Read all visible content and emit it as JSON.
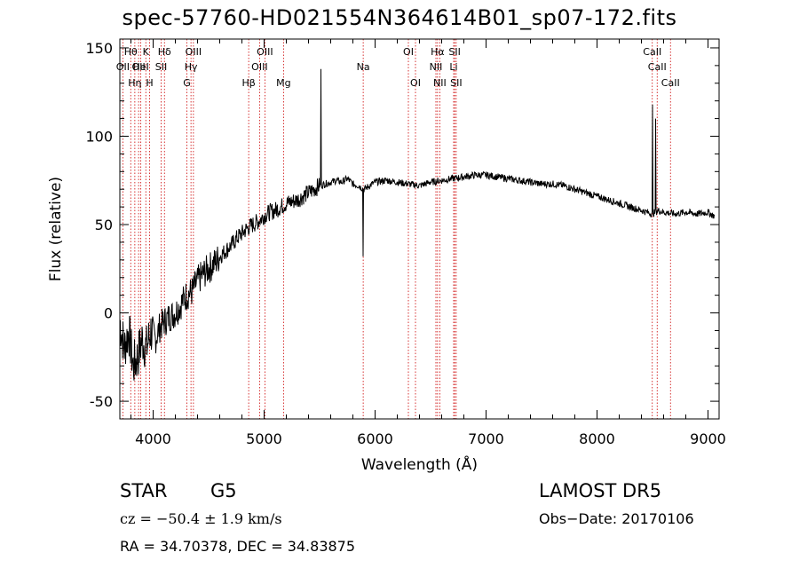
{
  "chart_data": {
    "type": "line",
    "title": "spec-57760-HD021554N364614B01_sp07-172.fits",
    "xlabel": "Wavelength (Å)",
    "ylabel": "Flux (relative)",
    "xlim": [
      3700,
      9100
    ],
    "ylim": [
      -60,
      155
    ],
    "xticks": [
      4000,
      5000,
      6000,
      7000,
      8000,
      9000
    ],
    "yticks": [
      -50,
      0,
      50,
      100,
      150
    ],
    "grid": false,
    "series": [
      {
        "x": [
          3700,
          3740,
          3780,
          3820,
          3860,
          3900,
          3940,
          3980,
          4020,
          4060,
          4100,
          4150,
          4200,
          4250,
          4300,
          4350,
          4400,
          4450,
          4500,
          4550,
          4600,
          4650,
          4700,
          4750,
          4800,
          4850,
          4900,
          4950,
          5000,
          5050,
          5100,
          5150,
          5200,
          5250,
          5300,
          5350,
          5400,
          5450,
          5500,
          5550,
          5600,
          5650,
          5700,
          5750,
          5800,
          5850,
          5900,
          5950,
          6000,
          6100,
          6200,
          6300,
          6400,
          6500,
          6600,
          6700,
          6800,
          6900,
          7000,
          7100,
          7200,
          7300,
          7400,
          7500,
          7600,
          7700,
          7800,
          7900,
          8000,
          8100,
          8200,
          8300,
          8400,
          8450,
          8500,
          8550,
          8600,
          8700,
          8800,
          8900,
          9000,
          9050,
          9100
        ],
        "values": [
          -5,
          -20,
          -10,
          -30,
          -25,
          -15,
          -20,
          -10,
          -15,
          -8,
          -5,
          -2,
          0,
          5,
          10,
          12,
          18,
          22,
          25,
          28,
          32,
          35,
          38,
          42,
          45,
          48,
          50,
          52,
          55,
          57,
          58,
          60,
          62,
          63,
          64,
          66,
          68,
          70,
          72,
          73,
          74,
          75,
          74,
          76,
          73,
          72,
          70,
          72,
          74,
          75,
          74,
          73,
          72,
          74,
          75,
          76,
          77,
          78,
          78,
          77,
          76,
          75,
          74,
          73,
          73,
          72,
          70,
          68,
          66,
          64,
          62,
          60,
          58,
          57,
          56,
          58,
          57,
          56,
          57,
          56,
          57,
          55,
          54
        ]
      }
    ],
    "lines": [
      {
        "label": "OII",
        "x": 3727,
        "row": 2
      },
      {
        "label": "Hθ",
        "x": 3798,
        "row": 1
      },
      {
        "label": "Hη",
        "x": 3835,
        "row": 3
      },
      {
        "label": "OII",
        "x": 3869,
        "row": 2
      },
      {
        "label": "HeI",
        "x": 3889,
        "row": 2
      },
      {
        "label": "K",
        "x": 3934,
        "row": 1
      },
      {
        "label": "H",
        "x": 3968,
        "row": 3
      },
      {
        "label": "SII",
        "x": 4072,
        "row": 2
      },
      {
        "label": "Hδ",
        "x": 4102,
        "row": 1
      },
      {
        "label": "G",
        "x": 4304,
        "row": 3
      },
      {
        "label": "Hγ",
        "x": 4341,
        "row": 2
      },
      {
        "label": "OIII",
        "x": 4363,
        "row": 1
      },
      {
        "label": "Hβ",
        "x": 4861,
        "row": 3
      },
      {
        "label": "OIII",
        "x": 4959,
        "row": 2
      },
      {
        "label": "OIII",
        "x": 5007,
        "row": 1
      },
      {
        "label": "Mg",
        "x": 5175,
        "row": 3
      },
      {
        "label": "Na",
        "x": 5893,
        "row": 2
      },
      {
        "label": "OI",
        "x": 6300,
        "row": 1
      },
      {
        "label": "OI",
        "x": 6364,
        "row": 3
      },
      {
        "label": "NII",
        "x": 6548,
        "row": 2
      },
      {
        "label": "Hα",
        "x": 6563,
        "row": 1
      },
      {
        "label": "NII",
        "x": 6583,
        "row": 3
      },
      {
        "label": "Li",
        "x": 6708,
        "row": 2
      },
      {
        "label": "SII",
        "x": 6717,
        "row": 1
      },
      {
        "label": "SII",
        "x": 6731,
        "row": 3
      },
      {
        "label": "CaII",
        "x": 8498,
        "row": 1
      },
      {
        "label": "CaII",
        "x": 8542,
        "row": 2
      },
      {
        "label": "CaII",
        "x": 8662,
        "row": 3
      }
    ]
  },
  "info": {
    "object_class": "STAR",
    "subclass": "G5",
    "survey": "LAMOST DR5",
    "cz": "cz = −50.4 ± 1.9 km/s",
    "obs_date": "Obs−Date: 20170106",
    "coords": "RA =  34.70378, DEC =  34.83875"
  },
  "colors": {
    "spectrum": "#000000",
    "line_markers": "#cc0000",
    "axes": "#000000"
  }
}
